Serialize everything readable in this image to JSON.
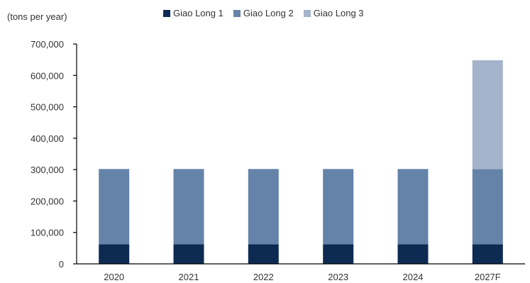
{
  "chart_data": {
    "type": "bar",
    "stacked": true,
    "ylabel": "(tons per year)",
    "categories": [
      "2020",
      "2021",
      "2022",
      "2023",
      "2024",
      "2027F"
    ],
    "ylim": [
      0,
      700000
    ],
    "yticks": [
      "0",
      "100,000",
      "200,000",
      "300,000",
      "400,000",
      "500,000",
      "600,000",
      "700,000"
    ],
    "ytick_values": [
      0,
      100000,
      200000,
      300000,
      400000,
      500000,
      600000,
      700000
    ],
    "legend_position": "top",
    "grid": false,
    "series": [
      {
        "name": "Giao Long 1",
        "color": "#0d2b52",
        "values": [
          62000,
          62000,
          62000,
          62000,
          62000,
          62000
        ]
      },
      {
        "name": "Giao Long 2",
        "color": "#6583a8",
        "values": [
          240000,
          240000,
          240000,
          240000,
          240000,
          240000
        ]
      },
      {
        "name": "Giao Long 3",
        "color": "#a3b3cb",
        "values": [
          0,
          0,
          0,
          0,
          0,
          346000
        ]
      }
    ]
  }
}
